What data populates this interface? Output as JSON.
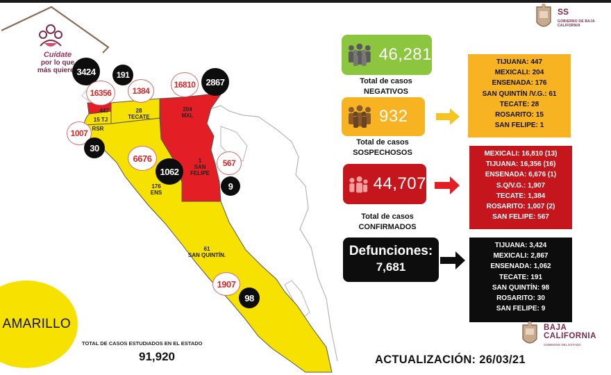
{
  "header": {
    "logo_text_line1": "Cuídate",
    "logo_text_line2": "por lo que",
    "logo_text_line3": "más quieres",
    "ss_title": "SS",
    "ss_subtitle": "GOBIERNO DE BAJA CALIFORNIA"
  },
  "map": {
    "labels": {
      "tijuana": "447",
      "tj": "15 TJ",
      "rosarito": "RSR",
      "tecate": "28\nTECATE",
      "mexicali": "204\nMXL",
      "san_felipe": "1\nSAN\nFELIPE",
      "ensenada": "176\nENS",
      "san_quintin": "61\nSAN QUINTÍN."
    },
    "circles": {
      "tijuana_deaths": "3424",
      "tecate_deaths": "191",
      "tijuana_confirmed": "16356",
      "tecate_confirmed": "1384",
      "mexicali_confirmed": "16810",
      "mexicali_deaths": "2867",
      "rosarito_confirmed": "1007",
      "rosarito_deaths": "30",
      "ensenada_confirmed": "6676",
      "ensenada_deaths": "1062",
      "san_felipe_confirmed": "567",
      "san_felipe_deaths": "9",
      "san_quintin_confirmed": "1907",
      "san_quintin_deaths": "98"
    },
    "colors": {
      "yellow": "#f6e100",
      "red": "#e31e25",
      "border": "#555555"
    }
  },
  "status": {
    "semaforo": "AMARILLO"
  },
  "totals": {
    "label": "TOTAL DE CASOS ESTUDIADOS EN EL ESTADO",
    "value": "91,920"
  },
  "stats": {
    "negativos": {
      "value": "46,281",
      "caption1": "Total de casos",
      "caption2": "NEGATIVOS",
      "color": "#8cc63f"
    },
    "sospechosos": {
      "value": "932",
      "caption1": "Total de casos",
      "caption2": "SOSPECHOSOS",
      "color": "#f7b321"
    },
    "confirmados": {
      "value": "44,707",
      "caption1": "Total de casos",
      "caption2": "CONFIRMADOS",
      "color": "#c4161c"
    },
    "defunciones": {
      "title": "Defunciones:",
      "value": "7,681"
    }
  },
  "lists": {
    "sospechosos": [
      "TIJUANA: 447",
      "MEXICALI: 204",
      "ENSENADA: 176",
      "SAN QUINTÍN /V.G.: 61",
      "TECATE: 28",
      "ROSARITO: 15",
      "SAN FELIPE: 1"
    ],
    "confirmados": [
      "MEXICALI: 16,810 (13)",
      "TIJUANA: 16,356 (16)",
      "ENSENADA: 6,676 (1)",
      "S.Q/V.G.: 1,907",
      "TECATE: 1,384",
      "ROSARITO: 1,007 (2)",
      "SAN FELIPE: 567"
    ],
    "defunciones": [
      "TIJUANA: 3,424",
      "MEXICALI: 2,867",
      "ENSENADA: 1,062",
      "TECATE: 191",
      "SAN QUINTÍN: 98",
      "ROSARITO: 30",
      "SAN FELIPE: 9"
    ]
  },
  "footer": {
    "update": "ACTUALIZACIÓN: 26/03/21",
    "bc_title": "BAJA",
    "bc_title2": "CALIFORNIA",
    "bc_subtitle": "GOBIERNO DEL ESTADO"
  }
}
